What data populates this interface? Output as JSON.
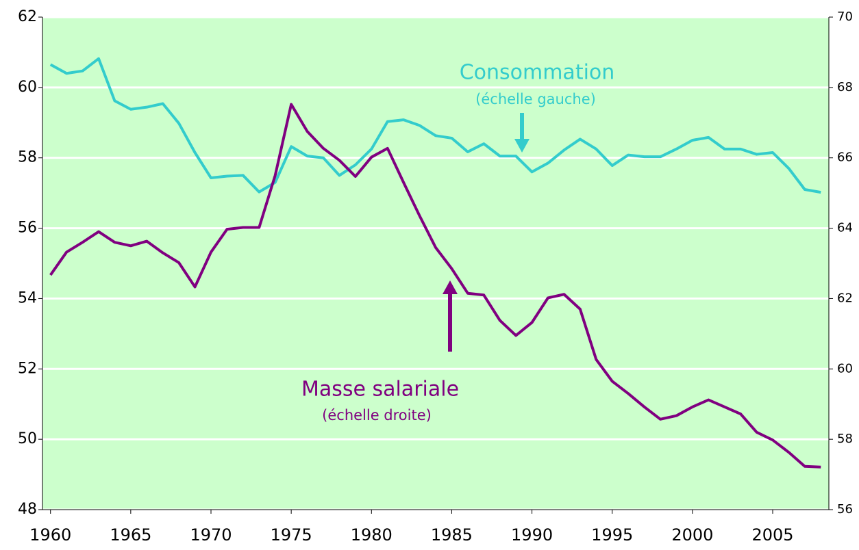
{
  "chart_data": {
    "type": "line",
    "x": [
      1960,
      1961,
      1962,
      1963,
      1964,
      1965,
      1966,
      1967,
      1968,
      1969,
      1970,
      1971,
      1972,
      1973,
      1974,
      1975,
      1976,
      1977,
      1978,
      1979,
      1980,
      1981,
      1982,
      1983,
      1984,
      1985,
      1986,
      1987,
      1988,
      1989,
      1990,
      1991,
      1992,
      1993,
      1994,
      1995,
      1996,
      1997,
      1998,
      1999,
      2000,
      2001,
      2002,
      2003,
      2004,
      2005,
      2006,
      2007,
      2008
    ],
    "xlim": [
      1959.5,
      2008.5
    ],
    "xticks": [
      1960,
      1965,
      1970,
      1975,
      1980,
      1985,
      1990,
      1995,
      2000,
      2005
    ],
    "ylim": [
      48,
      62
    ],
    "yticks": [
      48,
      50,
      52,
      54,
      56,
      58,
      60,
      62
    ],
    "y2lim": [
      56,
      70
    ],
    "y2ticks": [
      56,
      58,
      60,
      62,
      64,
      66,
      68,
      70
    ],
    "grid": true,
    "background": "#ccffcc",
    "series": [
      {
        "name": "Consommation",
        "color": "#33cccc",
        "values": [
          60.65,
          60.4,
          60.47,
          60.82,
          59.62,
          59.38,
          59.44,
          59.54,
          58.98,
          58.15,
          57.43,
          57.48,
          57.5,
          57.03,
          57.3,
          58.32,
          58.05,
          58.0,
          57.5,
          57.8,
          58.25,
          59.03,
          59.08,
          58.92,
          58.63,
          58.56,
          58.17,
          58.4,
          58.05,
          58.05,
          57.6,
          57.85,
          58.22,
          58.53,
          58.25,
          57.78,
          58.08,
          58.03,
          58.03,
          58.25,
          58.5,
          58.58,
          58.25,
          58.25,
          58.1,
          58.15,
          57.7,
          57.1,
          57.02
        ]
      },
      {
        "name": "Masse salariale",
        "color": "#800080",
        "axis": "y2",
        "values": [
          62.67,
          63.32,
          63.6,
          63.9,
          63.6,
          63.5,
          63.63,
          63.3,
          63.02,
          62.33,
          63.32,
          63.97,
          64.02,
          64.02,
          65.5,
          67.52,
          66.75,
          66.27,
          65.93,
          65.47,
          66.02,
          66.27,
          65.3,
          64.35,
          63.45,
          62.85,
          62.15,
          62.1,
          61.38,
          60.95,
          61.32,
          62.02,
          62.12,
          61.7,
          60.27,
          59.65,
          59.3,
          58.92,
          58.57,
          58.67,
          58.92,
          59.12,
          58.92,
          58.72,
          58.2,
          57.98,
          57.63,
          57.23,
          57.21
        ]
      }
    ],
    "annotations": [
      "(échelle gauche)",
      "(échelle droite)"
    ]
  }
}
